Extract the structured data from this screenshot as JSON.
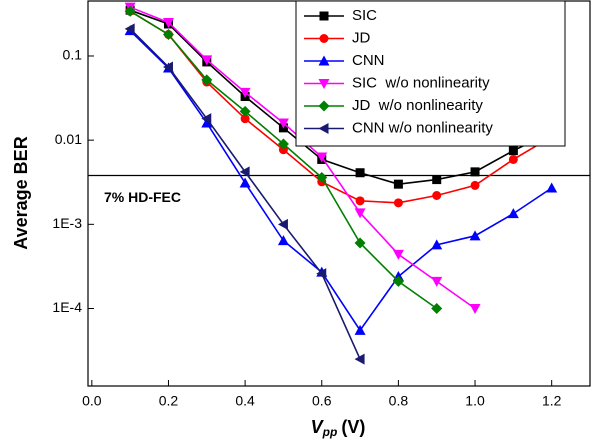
{
  "chart_data": {
    "type": "line",
    "y_label": "Average BER",
    "x_label": {
      "symbol": "V",
      "subscript": "pp",
      "unit": "(V)"
    },
    "xlim": [
      -0.01,
      1.3
    ],
    "xticks": [
      {
        "value": 0,
        "label": "0.0"
      },
      0.2,
      0.4,
      0.6,
      0.8,
      {
        "value": 1,
        "label": "1.0"
      },
      1.2
    ],
    "ylim": [
      1.2e-05,
      0.45
    ],
    "yscale": "log",
    "yticks": [
      0.1,
      0.01,
      {
        "value": 0.001,
        "label": "1E-3"
      },
      {
        "value": 0.0001,
        "label": "1E-4"
      }
    ],
    "legend": "upper right",
    "threshold": {
      "value": 0.0038,
      "label": "7% HD-FEC"
    },
    "series": [
      {
        "name": "SIC",
        "color": "#000000",
        "marker": "square",
        "x": [
          0.1,
          0.2,
          0.3,
          0.4,
          0.5,
          0.6,
          0.7,
          0.8,
          0.9,
          1.0,
          1.1,
          1.2
        ],
        "values": [
          0.35,
          0.24,
          0.085,
          0.033,
          0.014,
          0.0059,
          0.0041,
          0.003,
          0.0034,
          0.0042,
          0.0075,
          0.0125
        ]
      },
      {
        "name": "JD",
        "color": "#ff0000",
        "marker": "circle",
        "x": [
          0.1,
          0.2,
          0.3,
          0.4,
          0.5,
          0.6,
          0.7,
          0.8,
          0.9,
          1.0,
          1.1,
          1.2
        ],
        "values": [
          0.34,
          0.18,
          0.049,
          0.018,
          0.0077,
          0.0032,
          0.0019,
          0.0018,
          0.0022,
          0.0029,
          0.0059,
          0.011
        ]
      },
      {
        "name": "CNN",
        "color": "#0000ff",
        "marker": "triangle-up",
        "x": [
          0.1,
          0.2,
          0.3,
          0.4,
          0.5,
          0.6,
          0.7,
          0.8,
          0.9,
          1.0,
          1.1,
          1.2
        ],
        "values": [
          0.2,
          0.072,
          0.016,
          0.0031,
          0.00064,
          0.00027,
          5.5e-05,
          0.00024,
          0.00057,
          0.00073,
          0.00134,
          0.0027
        ]
      },
      {
        "name": "SIC  w/o nonlinearity",
        "color": "#ff00ff",
        "marker": "triangle-down",
        "x": [
          0.1,
          0.2,
          0.3,
          0.4,
          0.5,
          0.6,
          0.7,
          0.8,
          0.9,
          1.0
        ],
        "values": [
          0.38,
          0.25,
          0.09,
          0.037,
          0.016,
          0.0063,
          0.00137,
          0.00044,
          0.00021,
          0.0001
        ]
      },
      {
        "name": "JD  w/o nonlinearity",
        "color": "#008000",
        "marker": "diamond",
        "x": [
          0.1,
          0.2,
          0.3,
          0.4,
          0.5,
          0.6,
          0.7,
          0.8,
          0.9
        ],
        "values": [
          0.34,
          0.18,
          0.052,
          0.022,
          0.009,
          0.0036,
          0.0006,
          0.00021,
          0.0001
        ]
      },
      {
        "name": "CNN w/o nonlinearity",
        "color": "#1a1a70",
        "marker": "triangle-left",
        "x": [
          0.1,
          0.2,
          0.3,
          0.4,
          0.5,
          0.6,
          0.7
        ],
        "values": [
          0.21,
          0.074,
          0.018,
          0.0042,
          0.001,
          0.00026,
          2.5e-05
        ]
      }
    ]
  }
}
